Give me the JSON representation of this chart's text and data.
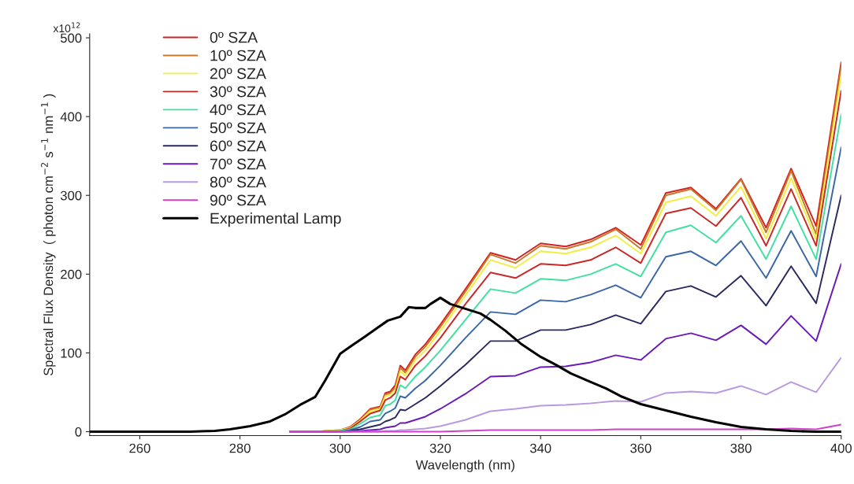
{
  "chart_data": {
    "type": "line",
    "xlabel": "Wavelength (nm)",
    "ylabel": "Spectral Flux Density  ( photon cm$^{−2}$ s$^{−1}$ nm$^{−1}$ )",
    "x": [
      290,
      295,
      300,
      302,
      304,
      306,
      308,
      309,
      310,
      311,
      312,
      313,
      315,
      317,
      320,
      325,
      330,
      335,
      340,
      345,
      350,
      355,
      360,
      365,
      370,
      375,
      380,
      385,
      390,
      395,
      400
    ],
    "xlim": [
      250,
      400
    ],
    "xticks": [
      260,
      280,
      300,
      320,
      340,
      360,
      380,
      400
    ],
    "ylim": [
      -5,
      505
    ],
    "yticks": [
      0,
      100,
      200,
      300,
      400,
      500
    ],
    "annotations": [
      "x10$^{12}$"
    ],
    "grid": false,
    "legend": "top left",
    "line_style": "solid",
    "marker": "none",
    "series": [
      {
        "name": "0º SZA",
        "color": "#d62020",
        "values": [
          0,
          0,
          2,
          6,
          16,
          29,
          32,
          49,
          51,
          59,
          84,
          78,
          98,
          111,
          136,
          181,
          227,
          218,
          239,
          235,
          244,
          259,
          237,
          303,
          310,
          283,
          321,
          259,
          334,
          261,
          469
        ]
      },
      {
        "name": "10º SZA",
        "color": "#c8782a",
        "values": [
          0,
          0,
          2,
          5,
          15,
          28,
          31,
          47,
          49,
          56,
          81,
          75,
          95,
          108,
          133,
          178,
          225,
          214,
          236,
          232,
          241,
          257,
          232,
          300,
          308,
          281,
          320,
          253,
          331,
          251,
          464
        ]
      },
      {
        "name": "20º SZA",
        "color": "#f0ee40",
        "values": [
          0,
          0,
          2,
          5,
          14,
          26,
          29,
          45,
          47,
          53,
          77,
          71,
          91,
          103,
          128,
          173,
          218,
          208,
          229,
          226,
          234,
          249,
          226,
          291,
          299,
          274,
          311,
          245,
          322,
          244,
          453
        ]
      },
      {
        "name": "30º SZA",
        "color": "#c82828",
        "values": [
          0,
          0,
          1,
          4,
          13,
          23,
          27,
          40,
          43,
          49,
          70,
          66,
          84,
          96,
          119,
          162,
          202,
          195,
          213,
          211,
          218,
          234,
          214,
          277,
          284,
          261,
          297,
          236,
          308,
          236,
          433
        ]
      },
      {
        "name": "40º SZA",
        "color": "#40e0a0",
        "values": [
          0,
          0,
          1,
          3,
          10,
          18,
          21,
          33,
          35,
          40,
          59,
          55,
          70,
          82,
          103,
          142,
          181,
          176,
          194,
          192,
          200,
          213,
          197,
          253,
          262,
          240,
          274,
          219,
          286,
          219,
          403
        ]
      },
      {
        "name": "50º SZA",
        "color": "#3a66a8",
        "values": [
          0,
          0,
          0,
          2,
          6,
          13,
          15,
          23,
          26,
          30,
          45,
          43,
          55,
          65,
          84,
          119,
          152,
          149,
          167,
          165,
          174,
          186,
          170,
          222,
          229,
          211,
          242,
          195,
          255,
          197,
          361
        ]
      },
      {
        "name": "60º SZA",
        "color": "#2a2a60",
        "values": [
          0,
          0,
          0,
          1,
          3,
          6,
          9,
          13,
          15,
          18,
          28,
          27,
          35,
          43,
          58,
          85,
          115,
          115,
          129,
          129,
          136,
          148,
          137,
          178,
          185,
          171,
          198,
          160,
          210,
          163,
          300
        ]
      },
      {
        "name": "70º SZA",
        "color": "#6a1ab8",
        "values": [
          0,
          0,
          0,
          0,
          1,
          2,
          3,
          5,
          6,
          7,
          11,
          11,
          15,
          19,
          29,
          48,
          70,
          71,
          82,
          83,
          88,
          97,
          91,
          118,
          125,
          116,
          135,
          111,
          147,
          115,
          213
        ]
      },
      {
        "name": "80º SZA",
        "color": "#b89ae0",
        "values": [
          0,
          0,
          0,
          0,
          0,
          0,
          0,
          1,
          1,
          1,
          2,
          2,
          3,
          4,
          7,
          15,
          26,
          29,
          33,
          34,
          36,
          39,
          38,
          49,
          51,
          49,
          58,
          47,
          63,
          50,
          94
        ]
      },
      {
        "name": "90º SZA",
        "color": "#d040c8",
        "values": [
          0,
          0,
          0,
          0,
          0,
          0,
          0,
          0,
          0,
          0,
          0,
          0,
          0,
          0,
          0,
          1,
          2,
          2,
          2,
          2,
          2,
          3,
          3,
          3,
          3,
          3,
          3,
          3,
          4,
          3,
          9
        ]
      },
      {
        "name": "Experimental Lamp",
        "color": "#000000",
        "x": [
          250,
          260,
          270,
          275,
          278,
          282,
          286,
          289,
          292,
          295,
          297,
          300,
          302,
          305,
          307,
          309.5,
          312,
          313.7,
          315,
          317,
          318,
          320,
          322,
          325,
          328,
          330,
          333,
          336,
          340,
          343,
          346,
          350,
          353,
          356,
          360,
          365,
          370,
          375,
          380,
          385,
          390,
          395,
          400
        ],
        "values": [
          0,
          0,
          0,
          1,
          3,
          7,
          13,
          22,
          34,
          44,
          65,
          99,
          108,
          121,
          130,
          141,
          146,
          158,
          157,
          157,
          162,
          170,
          162,
          156,
          150,
          142,
          128,
          112,
          95,
          85,
          74,
          63,
          55,
          45,
          35,
          27,
          19,
          12,
          6,
          3,
          1,
          0,
          0
        ]
      }
    ]
  }
}
